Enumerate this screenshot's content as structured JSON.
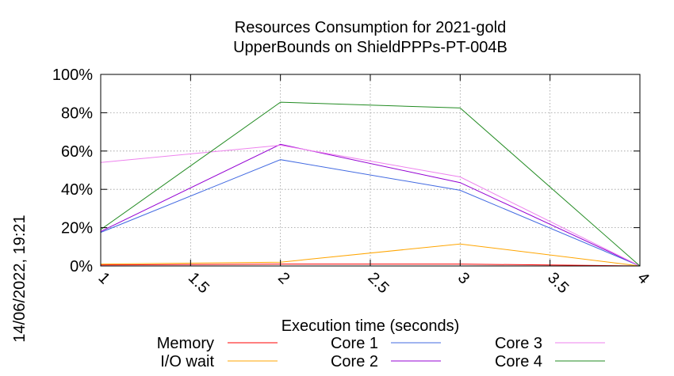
{
  "chart_data": {
    "type": "line",
    "title": [
      "Resources Consumption for 2021-gold",
      "UpperBounds on ShieldPPPs-PT-004B"
    ],
    "xlabel": "Execution time (seconds)",
    "ylabel": "",
    "timestamp": "14/06/2022, 19:21",
    "xlim": [
      1,
      4
    ],
    "ylim": [
      0,
      100
    ],
    "xticks": [
      "1",
      "1.5",
      "2",
      "2.5",
      "3",
      "3.5",
      "4"
    ],
    "yticks": [
      "0%",
      "20%",
      "40%",
      "60%",
      "80%",
      "100%"
    ],
    "grid": true,
    "legend_position": "bottom",
    "series": [
      {
        "name": "Memory",
        "color": "#ff0000",
        "x": [
          1,
          2,
          3,
          4
        ],
        "y": [
          0.5,
          1.0,
          1.0,
          0
        ]
      },
      {
        "name": "I/O wait",
        "color": "#ffa500",
        "x": [
          1,
          2,
          3,
          4
        ],
        "y": [
          1.0,
          2.0,
          11.5,
          0
        ]
      },
      {
        "name": "Core 1",
        "color": "#4169e1",
        "x": [
          1,
          2,
          3,
          4
        ],
        "y": [
          17.5,
          55.5,
          39.5,
          0
        ]
      },
      {
        "name": "Core 2",
        "color": "#9400d3",
        "x": [
          1,
          2,
          3,
          4
        ],
        "y": [
          18.0,
          63.5,
          43.5,
          0
        ]
      },
      {
        "name": "Core 3",
        "color": "#ee82ee",
        "x": [
          1,
          2,
          3,
          4
        ],
        "y": [
          54.0,
          63.0,
          46.5,
          0
        ]
      },
      {
        "name": "Core 4",
        "color": "#228b22",
        "x": [
          1,
          2,
          3,
          4
        ],
        "y": [
          19.0,
          85.5,
          82.5,
          0
        ]
      }
    ]
  }
}
